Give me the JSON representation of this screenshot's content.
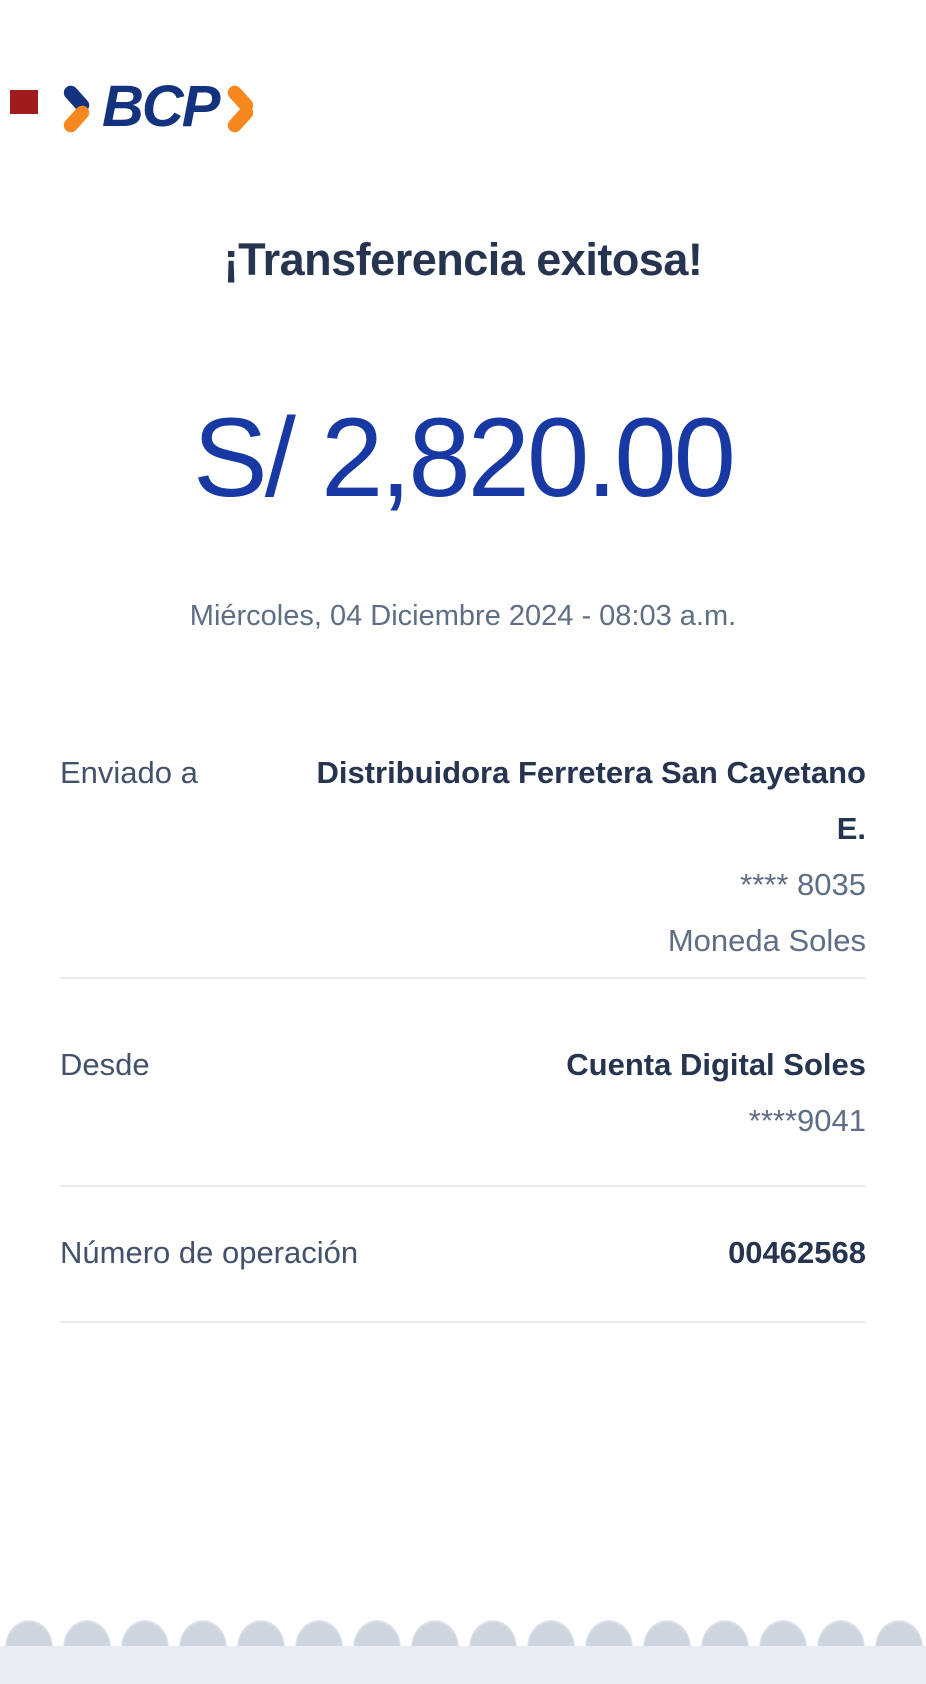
{
  "brand": {
    "logo_text": "BCP",
    "navy": "#14337f",
    "orange": "#f6881f"
  },
  "status_marker": {
    "color": "#9e1b1e"
  },
  "result": {
    "title": "¡Transferencia exitosa!",
    "amount": "S/ 2,820.00",
    "datetime": "Miércoles, 04 Diciembre 2024 - 08:03 a.m."
  },
  "details": {
    "sent_to": {
      "label": "Enviado a",
      "recipient_line1": "Distribuidora Ferretera San Cayetano",
      "recipient_line2": "E.",
      "account_mask": "**** 8035",
      "currency": "Moneda Soles"
    },
    "from": {
      "label": "Desde",
      "account_name": "Cuenta Digital Soles",
      "account_mask": "****9041"
    },
    "operation": {
      "label": "Número de operación",
      "number": "00462568"
    }
  },
  "colors": {
    "amount_blue": "#1839a4",
    "heading_navy": "#263450",
    "label_text": "#44516b",
    "muted_text": "#5f6e85",
    "divider": "#e8e9ec",
    "footer_bg": "#e9ecf2"
  }
}
